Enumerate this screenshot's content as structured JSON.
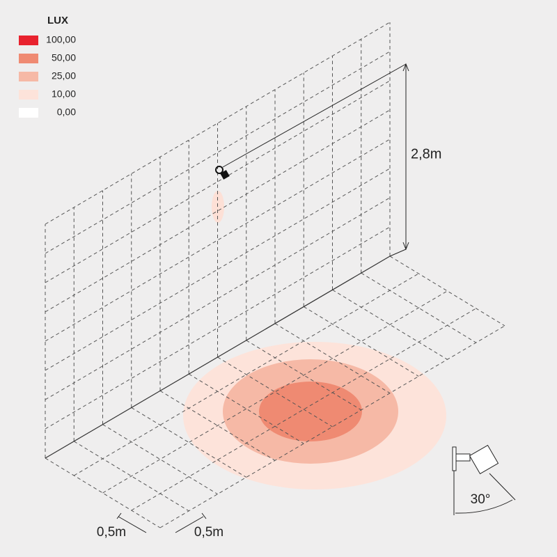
{
  "legend": {
    "title": "LUX",
    "items": [
      {
        "label": "100,00",
        "color": "#e8222e"
      },
      {
        "label": "50,00",
        "color": "#ef8a72"
      },
      {
        "label": "25,00",
        "color": "#f6b9a6"
      },
      {
        "label": "10,00",
        "color": "#fde3da"
      },
      {
        "label": "0,00",
        "color": "#ffffff"
      }
    ]
  },
  "dimensions": {
    "height": "2,8m",
    "grid_x": "0,5m",
    "grid_y": "0,5m",
    "tilt": "30°"
  }
}
